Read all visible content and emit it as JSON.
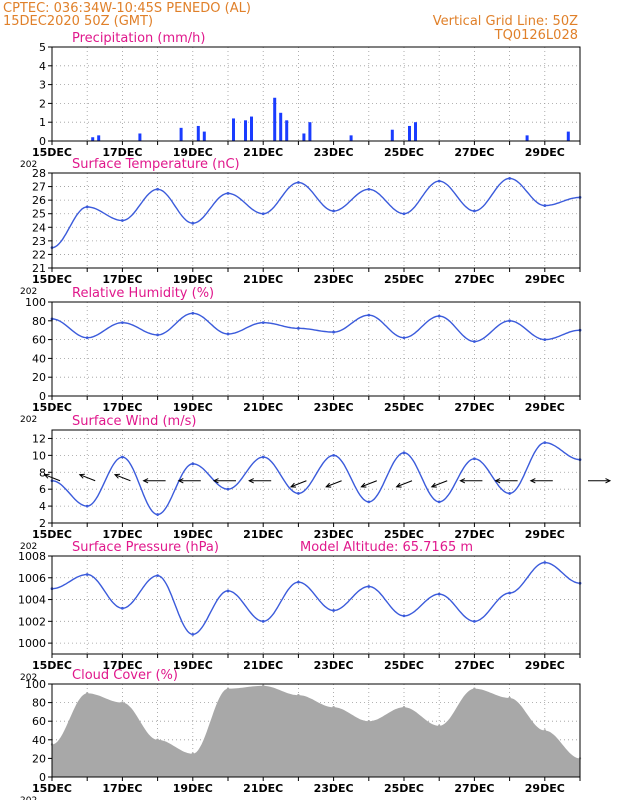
{
  "header": {
    "left_line1": "CPTEC:   036:34W-10:45S   PENEDO (AL)",
    "left_line2": "15DEC2020 50Z (GMT)",
    "right_line1": "Vertical Grid Line: 50Z",
    "right_line2": "TQ0126L028"
  },
  "colors": {
    "header": "#e0802a",
    "panel_title": "#e0188c",
    "series_line": "#3b5bdb",
    "precip_bars": "#1a3cff",
    "cloud_fill": "#a8a8a8",
    "wind_arrows": "#000000",
    "grid": "#9a9a9a"
  },
  "x_axis": {
    "days": [
      "15DEC",
      "16DEC",
      "17DEC",
      "18DEC",
      "19DEC",
      "20DEC",
      "21DEC",
      "22DEC",
      "23DEC",
      "24DEC",
      "25DEC",
      "26DEC",
      "27DEC",
      "28DEC",
      "29DEC",
      "30DEC"
    ],
    "tick_labels": [
      "15DEC",
      "17DEC",
      "19DEC",
      "21DEC",
      "23DEC",
      "25DEC",
      "27DEC",
      "29DEC"
    ],
    "year_fragment": "202"
  },
  "chart_data": [
    {
      "type": "bar",
      "title": "Precipitation (mm/h)",
      "ylim": [
        0,
        5
      ],
      "yticks": [
        0,
        1,
        2,
        3,
        4,
        5
      ],
      "grid": true,
      "x": [
        "16DEC",
        "16DEC",
        "17DEC",
        "18DEC",
        "19DEC",
        "19DEC",
        "20DEC",
        "20DEC",
        "20DEC",
        "21DEC",
        "21DEC",
        "21DEC",
        "22DEC",
        "22DEC",
        "23DEC",
        "24DEC",
        "25DEC",
        "25DEC",
        "28DEC",
        "29DEC"
      ],
      "values": [
        0.2,
        0.3,
        0.4,
        0.7,
        0.8,
        0.5,
        1.1,
        1.3,
        1.2,
        2.3,
        1.5,
        1.1,
        0.4,
        1.0,
        0.3,
        0.6,
        0.8,
        1.0,
        0.3,
        0.5
      ]
    },
    {
      "type": "line",
      "title": "Surface Temperature (nC)",
      "ylim": [
        21,
        28
      ],
      "yticks": [
        21,
        22,
        23,
        24,
        25,
        26,
        27,
        28
      ],
      "grid": true,
      "x": [
        "15DEC",
        "16DEC",
        "17DEC",
        "18DEC",
        "19DEC",
        "20DEC",
        "21DEC",
        "22DEC",
        "23DEC",
        "24DEC",
        "25DEC",
        "26DEC",
        "27DEC",
        "28DEC",
        "29DEC",
        "30DEC"
      ],
      "values": [
        22.5,
        25.5,
        24.5,
        26.8,
        24.3,
        26.5,
        25.0,
        27.3,
        25.2,
        26.8,
        25.0,
        27.4,
        25.2,
        27.6,
        25.6,
        26.2
      ]
    },
    {
      "type": "line",
      "title": "Relative Humidity (%)",
      "ylim": [
        0,
        100
      ],
      "yticks": [
        0,
        20,
        40,
        60,
        80,
        100
      ],
      "grid": true,
      "x": [
        "15DEC",
        "16DEC",
        "17DEC",
        "18DEC",
        "19DEC",
        "20DEC",
        "21DEC",
        "22DEC",
        "23DEC",
        "24DEC",
        "25DEC",
        "26DEC",
        "27DEC",
        "28DEC",
        "29DEC",
        "30DEC"
      ],
      "values": [
        82,
        62,
        78,
        65,
        88,
        66,
        78,
        72,
        68,
        86,
        62,
        85,
        58,
        80,
        60,
        70
      ]
    },
    {
      "type": "line",
      "title": "Surface Wind (m/s)",
      "ylim": [
        2,
        13
      ],
      "yticks": [
        2,
        4,
        6,
        8,
        10,
        12
      ],
      "grid": true,
      "x": [
        "15DEC",
        "16DEC",
        "17DEC",
        "18DEC",
        "19DEC",
        "20DEC",
        "21DEC",
        "22DEC",
        "23DEC",
        "24DEC",
        "25DEC",
        "26DEC",
        "27DEC",
        "28DEC",
        "29DEC",
        "30DEC"
      ],
      "values": [
        7.0,
        4.0,
        9.8,
        3.0,
        9.0,
        6.0,
        9.8,
        5.5,
        10.0,
        4.5,
        10.3,
        4.5,
        9.6,
        5.5,
        11.5,
        9.5
      ],
      "wind_barb_directions": [
        "NW",
        "NW",
        "NW",
        "W",
        "W",
        "W",
        "W",
        "SW",
        "SW",
        "SW",
        "SW",
        "SW",
        "W",
        "W",
        "W",
        "E"
      ]
    },
    {
      "type": "line",
      "title": "Surface Pressure (hPa)",
      "annotation": "Model Altitude: 65.7165 m",
      "ylim": [
        999,
        1008
      ],
      "yticks": [
        1000,
        1002,
        1004,
        1006,
        1008
      ],
      "grid": true,
      "x": [
        "15DEC",
        "16DEC",
        "17DEC",
        "18DEC",
        "19DEC",
        "20DEC",
        "21DEC",
        "22DEC",
        "23DEC",
        "24DEC",
        "25DEC",
        "26DEC",
        "27DEC",
        "28DEC",
        "29DEC",
        "30DEC"
      ],
      "values": [
        1005.0,
        1006.3,
        1003.2,
        1006.2,
        1000.8,
        1004.8,
        1002.0,
        1005.6,
        1003.0,
        1005.2,
        1002.5,
        1004.5,
        1002.0,
        1004.6,
        1007.4,
        1005.5
      ]
    },
    {
      "type": "area",
      "title": "Cloud Cover (%)",
      "ylim": [
        0,
        100
      ],
      "yticks": [
        0,
        20,
        40,
        60,
        80,
        100
      ],
      "grid": true,
      "x": [
        "15DEC",
        "16DEC",
        "17DEC",
        "18DEC",
        "19DEC",
        "20DEC",
        "21DEC",
        "22DEC",
        "23DEC",
        "24DEC",
        "25DEC",
        "26DEC",
        "27DEC",
        "28DEC",
        "29DEC",
        "30DEC"
      ],
      "values": [
        35,
        90,
        80,
        40,
        25,
        95,
        98,
        88,
        75,
        60,
        75,
        55,
        95,
        85,
        50,
        20
      ]
    }
  ]
}
